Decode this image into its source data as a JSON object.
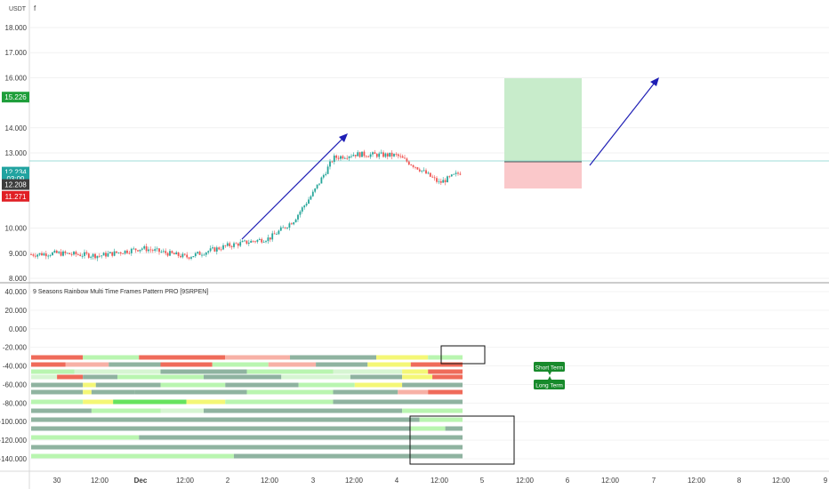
{
  "header": {
    "currency": "USDT",
    "menu_letter": "f"
  },
  "price_axis": {
    "ticks": [
      "18.000",
      "17.000",
      "16.000",
      "15.226",
      "14.000",
      "13.000",
      "12.234",
      "03:09",
      "12.208",
      "11.271",
      "10.000",
      "9.000",
      "8.000"
    ],
    "tick_values": [
      18,
      17,
      16,
      14,
      13,
      10,
      9,
      8
    ]
  },
  "price_tags": [
    {
      "label": "15.226",
      "value": 15.226,
      "color": "#1e9e3a"
    },
    {
      "label": "12.234",
      "value": 12.234,
      "color": "#21a3a0"
    },
    {
      "label": "03:09",
      "value": 11.97,
      "color": "#21a3a0"
    },
    {
      "label": "12.208",
      "value": 11.74,
      "color": "#3d3d3d"
    },
    {
      "label": "11.271",
      "value": 11.271,
      "color": "#e01f25"
    }
  ],
  "indicator": {
    "title": "9 Seasons Rainbow Multi Time Frames Pattern PRO [9SRPEN]",
    "ticks": [
      "40.000",
      "20.000",
      "0.000",
      "-20.000",
      "-40.000",
      "-60.000",
      "-80.000",
      "-100.000",
      "-120.000",
      "-140.000"
    ],
    "tick_values": [
      40,
      20,
      0,
      -20,
      -40,
      -60,
      -80,
      -100,
      -120,
      -140
    ]
  },
  "time_axis": {
    "labels": [
      "30",
      "12:00",
      "Dec",
      "12:00",
      "2",
      "12:00",
      "3",
      "12:00",
      "4",
      "12:00",
      "5",
      "12:00",
      "6",
      "12:00",
      "7",
      "12:00",
      "8",
      "12:00",
      "9"
    ]
  },
  "annotations": {
    "short_term": "Short Term",
    "long_term": "Long Term"
  },
  "colors": {
    "up": "#26a69a",
    "down": "#ef5350",
    "arrow": "#1f1fb5",
    "profit": "#c8eccb",
    "loss": "#fac8ca",
    "rainbow": [
      "#8fb3a0",
      "#b9f5b0",
      "#f4f776",
      "#ef6b5a",
      "#f7b1a6",
      "#66e35e",
      "#d6f5d2"
    ]
  },
  "chart_data": {
    "type": "candlestick",
    "x_range": [
      "Nov 29",
      "Dec 9"
    ],
    "ylim": [
      8,
      18
    ],
    "close_path": [
      [
        "Nov 29",
        8.95
      ],
      [
        "Nov 30 12:00",
        9.0
      ],
      [
        "Dec 1 00:00",
        8.9
      ],
      [
        "Dec 1 12:00",
        9.2
      ],
      [
        "Dec 1 18:00",
        8.85
      ],
      [
        "Dec 2 00:00",
        9.3
      ],
      [
        "Dec 2 12:00",
        9.6
      ],
      [
        "Dec 2 18:00",
        10.3
      ],
      [
        "Dec 3 00:00",
        11.4
      ],
      [
        "Dec 3 06:00",
        12.8
      ],
      [
        "Dec 3 12:00",
        12.95
      ],
      [
        "Dec 4 00:00",
        12.9
      ],
      [
        "Dec 4 06:00",
        12.4
      ],
      [
        "Dec 4 12:00",
        11.8
      ],
      [
        "Dec 4 18:00",
        12.23
      ]
    ],
    "position": {
      "entry": 12.234,
      "target": 15.226,
      "stop": 11.271
    },
    "indicator_ylim": [
      -150,
      45
    ]
  }
}
